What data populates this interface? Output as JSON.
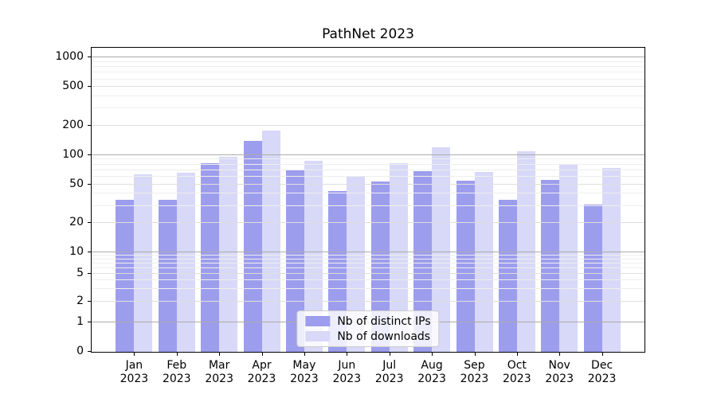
{
  "chart_data": {
    "type": "bar",
    "title": "PathNet 2023",
    "categories": [
      "Jan 2023",
      "Feb 2023",
      "Mar 2023",
      "Apr 2023",
      "May 2023",
      "Jun 2023",
      "Jul 2023",
      "Aug 2023",
      "Sep 2023",
      "Oct 2023",
      "Nov 2023",
      "Dec 2023"
    ],
    "series": [
      {
        "name": "Nb of distinct IPs",
        "color": "#9d9dee",
        "values": [
          35,
          35,
          83,
          140,
          71,
          43,
          53,
          68,
          54,
          35,
          56,
          31
        ]
      },
      {
        "name": "Nb of downloads",
        "color": "#d8d8f8",
        "values": [
          63,
          66,
          96,
          180,
          87,
          61,
          83,
          121,
          67,
          110,
          79,
          74
        ]
      }
    ],
    "yscale": "symlog",
    "yticks": [
      0,
      1,
      2,
      5,
      10,
      20,
      50,
      100,
      200,
      500,
      1000
    ],
    "ylim": [
      0,
      1300
    ],
    "xlabel": "",
    "ylabel": "",
    "grid": true,
    "grid_over_bars": true,
    "legend_position": "lower center",
    "colors": {
      "grid_major": "#ababab",
      "grid_labeled": "#dedede",
      "grid_minor": "#eeeeee",
      "axis": "#000000",
      "text": "#000000",
      "legend_border": "#cccccc",
      "background": "#ffffff"
    }
  }
}
